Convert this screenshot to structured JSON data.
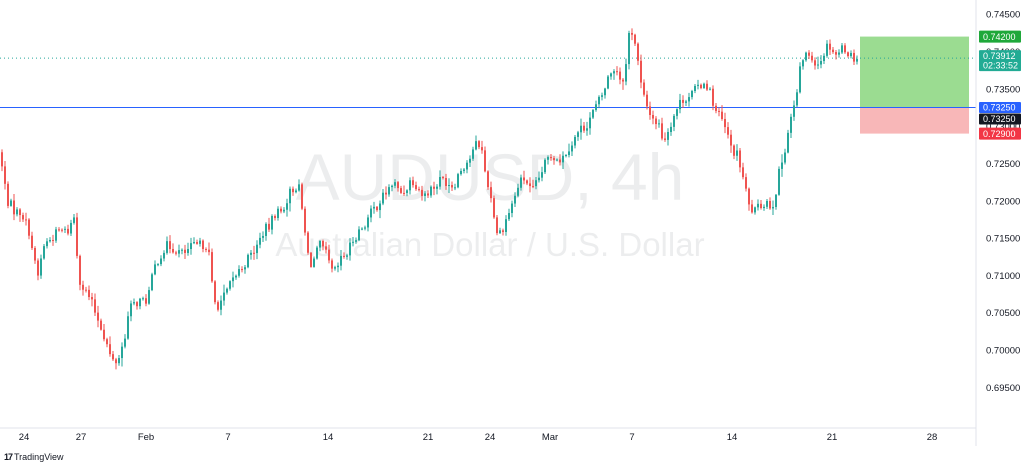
{
  "chart_data": {
    "type": "candlestick",
    "symbol": "AUDUSD, 4h",
    "description": "Australian Dollar / U.S. Dollar",
    "y_axis": {
      "range": [
        0.6925,
        0.7465
      ],
      "ticks": [
        "0.74500",
        "0.74000",
        "0.73500",
        "0.73000",
        "0.72500",
        "0.72000",
        "0.71500",
        "0.71000",
        "0.70500",
        "0.70000",
        "0.69500"
      ],
      "side": "right"
    },
    "x_axis": {
      "ticks": [
        {
          "label": "24",
          "t": 24
        },
        {
          "label": "27",
          "t": 81
        },
        {
          "label": "Feb",
          "t": 146
        },
        {
          "label": "7",
          "t": 228
        },
        {
          "label": "14",
          "t": 328
        },
        {
          "label": "21",
          "t": 428
        },
        {
          "label": "24",
          "t": 490
        },
        {
          "label": "Mar",
          "t": 550
        },
        {
          "label": "7",
          "t": 632
        },
        {
          "label": "14",
          "t": 732
        },
        {
          "label": "21",
          "t": 832
        },
        {
          "label": "28",
          "t": 932
        }
      ]
    },
    "colors": {
      "up": "#26a69a",
      "down": "#ef5350",
      "profit_zone": "#9bdc91",
      "loss_zone": "#f8b7b8",
      "entry_line": "#2962ff"
    },
    "position": {
      "entry": 0.7325,
      "take_profit": 0.742,
      "stop_loss": 0.729
    },
    "current_price": {
      "value": "0.73912",
      "countdown": "02:33:52",
      "extra": "0.73250"
    },
    "price_tags": {
      "take_profit": "0.74200",
      "entry": "0.73250",
      "stop_loss": "0.72900"
    },
    "anchors": [
      [
        0,
        0.7265
      ],
      [
        8,
        0.72
      ],
      [
        16,
        0.7185
      ],
      [
        22,
        0.7185
      ],
      [
        30,
        0.7158
      ],
      [
        38,
        0.7095
      ],
      [
        44,
        0.714
      ],
      [
        52,
        0.715
      ],
      [
        60,
        0.716
      ],
      [
        68,
        0.7158
      ],
      [
        75,
        0.718
      ],
      [
        79,
        0.71
      ],
      [
        83,
        0.7085
      ],
      [
        90,
        0.707
      ],
      [
        96,
        0.705
      ],
      [
        102,
        0.703
      ],
      [
        108,
        0.7005
      ],
      [
        112,
        0.6985
      ],
      [
        118,
        0.6985
      ],
      [
        124,
        0.701
      ],
      [
        130,
        0.7055
      ],
      [
        138,
        0.7065
      ],
      [
        146,
        0.7065
      ],
      [
        150,
        0.708
      ],
      [
        156,
        0.7115
      ],
      [
        162,
        0.713
      ],
      [
        168,
        0.714
      ],
      [
        176,
        0.7135
      ],
      [
        184,
        0.7128
      ],
      [
        192,
        0.7138
      ],
      [
        200,
        0.714
      ],
      [
        206,
        0.7143
      ],
      [
        210,
        0.7125
      ],
      [
        214,
        0.7065
      ],
      [
        218,
        0.706
      ],
      [
        224,
        0.707
      ],
      [
        230,
        0.7085
      ],
      [
        236,
        0.71
      ],
      [
        242,
        0.711
      ],
      [
        250,
        0.7125
      ],
      [
        258,
        0.714
      ],
      [
        264,
        0.716
      ],
      [
        270,
        0.7165
      ],
      [
        276,
        0.7185
      ],
      [
        282,
        0.7185
      ],
      [
        290,
        0.721
      ],
      [
        296,
        0.722
      ],
      [
        300,
        0.7215
      ],
      [
        306,
        0.715
      ],
      [
        310,
        0.7115
      ],
      [
        314,
        0.712
      ],
      [
        320,
        0.714
      ],
      [
        326,
        0.713
      ],
      [
        332,
        0.7105
      ],
      [
        336,
        0.7105
      ],
      [
        342,
        0.7122
      ],
      [
        348,
        0.713
      ],
      [
        354,
        0.715
      ],
      [
        360,
        0.716
      ],
      [
        366,
        0.717
      ],
      [
        372,
        0.7185
      ],
      [
        378,
        0.7195
      ],
      [
        386,
        0.721
      ],
      [
        394,
        0.7225
      ],
      [
        400,
        0.721
      ],
      [
        406,
        0.7215
      ],
      [
        412,
        0.723
      ],
      [
        418,
        0.722
      ],
      [
        424,
        0.7205
      ],
      [
        430,
        0.7215
      ],
      [
        436,
        0.722
      ],
      [
        442,
        0.723
      ],
      [
        448,
        0.7225
      ],
      [
        454,
        0.722
      ],
      [
        460,
        0.724
      ],
      [
        466,
        0.725
      ],
      [
        472,
        0.726
      ],
      [
        478,
        0.728
      ],
      [
        482,
        0.727
      ],
      [
        486,
        0.7235
      ],
      [
        490,
        0.7215
      ],
      [
        494,
        0.7185
      ],
      [
        498,
        0.7155
      ],
      [
        502,
        0.716
      ],
      [
        508,
        0.718
      ],
      [
        514,
        0.72
      ],
      [
        520,
        0.7225
      ],
      [
        526,
        0.723
      ],
      [
        532,
        0.721
      ],
      [
        538,
        0.7225
      ],
      [
        544,
        0.7245
      ],
      [
        550,
        0.726
      ],
      [
        556,
        0.726
      ],
      [
        562,
        0.7255
      ],
      [
        568,
        0.727
      ],
      [
        574,
        0.728
      ],
      [
        580,
        0.7295
      ],
      [
        586,
        0.73
      ],
      [
        592,
        0.7315
      ],
      [
        598,
        0.733
      ],
      [
        604,
        0.7345
      ],
      [
        610,
        0.737
      ],
      [
        616,
        0.738
      ],
      [
        622,
        0.736
      ],
      [
        626,
        0.7375
      ],
      [
        630,
        0.743
      ],
      [
        634,
        0.7425
      ],
      [
        638,
        0.739
      ],
      [
        642,
        0.735
      ],
      [
        646,
        0.733
      ],
      [
        650,
        0.732
      ],
      [
        654,
        0.731
      ],
      [
        660,
        0.73
      ],
      [
        664,
        0.728
      ],
      [
        670,
        0.73
      ],
      [
        676,
        0.732
      ],
      [
        682,
        0.7335
      ],
      [
        688,
        0.734
      ],
      [
        694,
        0.7345
      ],
      [
        700,
        0.7355
      ],
      [
        706,
        0.736
      ],
      [
        712,
        0.734
      ],
      [
        716,
        0.732
      ],
      [
        720,
        0.7315
      ],
      [
        726,
        0.7295
      ],
      [
        732,
        0.727
      ],
      [
        738,
        0.726
      ],
      [
        742,
        0.724
      ],
      [
        746,
        0.7215
      ],
      [
        750,
        0.719
      ],
      [
        756,
        0.7185
      ],
      [
        762,
        0.7195
      ],
      [
        768,
        0.72
      ],
      [
        772,
        0.719
      ],
      [
        776,
        0.721
      ],
      [
        780,
        0.724
      ],
      [
        784,
        0.726
      ],
      [
        788,
        0.729
      ],
      [
        792,
        0.7315
      ],
      [
        796,
        0.733
      ],
      [
        800,
        0.737
      ],
      [
        804,
        0.7395
      ],
      [
        810,
        0.7395
      ],
      [
        814,
        0.739
      ],
      [
        818,
        0.7385
      ],
      [
        822,
        0.739
      ],
      [
        826,
        0.7405
      ],
      [
        830,
        0.741
      ],
      [
        834,
        0.74
      ],
      [
        838,
        0.7395
      ],
      [
        842,
        0.7405
      ],
      [
        846,
        0.7405
      ],
      [
        850,
        0.7395
      ],
      [
        856,
        0.7391
      ]
    ]
  }
}
